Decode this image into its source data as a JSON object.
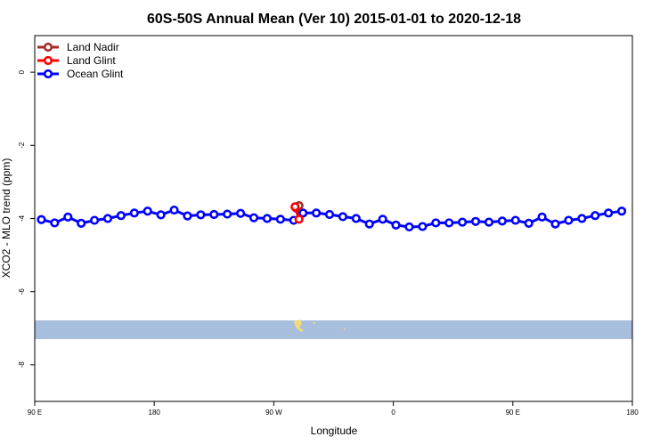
{
  "chart_data": {
    "type": "line",
    "title": "60S-50S Annual Mean (Ver 10)   2015-01-01 to 2020-12-18",
    "xlabel": "Longitude",
    "ylabel": "XCO2 - MLO trend (ppm)",
    "xlim": [
      90,
      540
    ],
    "ylim": [
      -9,
      1
    ],
    "x_ticks": [
      {
        "value": 90,
        "label": "90 E"
      },
      {
        "value": 180,
        "label": "180"
      },
      {
        "value": 270,
        "label": "90 W"
      },
      {
        "value": 360,
        "label": "0"
      },
      {
        "value": 450,
        "label": "90 E"
      },
      {
        "value": 540,
        "label": "180"
      }
    ],
    "y_ticks": [
      {
        "value": 0,
        "label": "0"
      },
      {
        "value": -2,
        "label": "-2"
      },
      {
        "value": -4,
        "label": "-4"
      },
      {
        "value": -6,
        "label": "-6"
      },
      {
        "value": -8,
        "label": "-8"
      }
    ],
    "grid": false,
    "legend_position": "top-left",
    "series": [
      {
        "name": "Land Nadir",
        "color": "#a52a2a",
        "points": [
          [
            287,
            -3.72
          ],
          [
            289,
            -3.65
          ]
        ]
      },
      {
        "name": "Land Glint",
        "color": "#ff0000",
        "points": [
          [
            286,
            -3.68
          ],
          [
            289,
            -4.02
          ]
        ]
      },
      {
        "name": "Ocean Glint",
        "color": "#0000ff",
        "points": [
          [
            95,
            -4.03
          ],
          [
            105,
            -4.12
          ],
          [
            115,
            -3.96
          ],
          [
            125,
            -4.13
          ],
          [
            135,
            -4.05
          ],
          [
            145,
            -4.0
          ],
          [
            155,
            -3.92
          ],
          [
            165,
            -3.85
          ],
          [
            175,
            -3.8
          ],
          [
            185,
            -3.9
          ],
          [
            195,
            -3.77
          ],
          [
            205,
            -3.93
          ],
          [
            215,
            -3.9
          ],
          [
            225,
            -3.89
          ],
          [
            235,
            -3.88
          ],
          [
            245,
            -3.86
          ],
          [
            255,
            -3.98
          ],
          [
            265,
            -4.0
          ],
          [
            275,
            -4.02
          ],
          [
            285,
            -4.05
          ],
          [
            292,
            -3.85
          ],
          [
            302,
            -3.85
          ],
          [
            312,
            -3.89
          ],
          [
            322,
            -3.95
          ],
          [
            332,
            -4.0
          ],
          [
            342,
            -4.15
          ],
          [
            352,
            -4.02
          ],
          [
            362,
            -4.18
          ],
          [
            372,
            -4.23
          ],
          [
            382,
            -4.22
          ],
          [
            392,
            -4.12
          ],
          [
            402,
            -4.12
          ],
          [
            412,
            -4.1
          ],
          [
            422,
            -4.08
          ],
          [
            432,
            -4.1
          ],
          [
            442,
            -4.07
          ],
          [
            452,
            -4.05
          ],
          [
            462,
            -4.13
          ],
          [
            472,
            -3.96
          ],
          [
            482,
            -4.15
          ],
          [
            492,
            -4.05
          ],
          [
            502,
            -4.0
          ],
          [
            512,
            -3.92
          ],
          [
            522,
            -3.85
          ],
          [
            532,
            -3.8
          ]
        ]
      }
    ],
    "map_strip": {
      "band_color": "#a8bedd",
      "land_color": "#f5d97a"
    }
  }
}
